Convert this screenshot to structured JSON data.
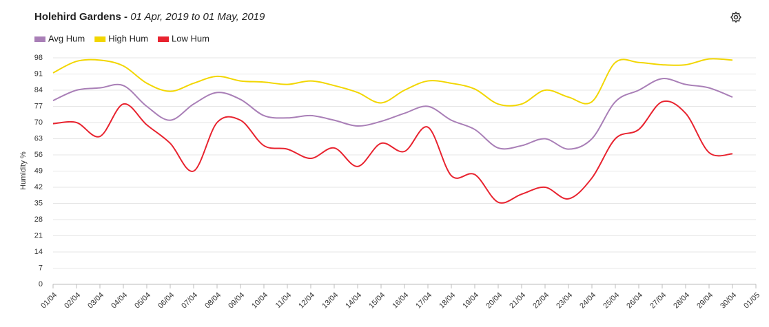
{
  "chart_data": {
    "type": "line",
    "title": "Holehird Gardens -",
    "subtitle": "01 Apr, 2019 to 01 May, 2019",
    "ylabel": "Humidity %",
    "categories": [
      "01/04",
      "02/04",
      "03/04",
      "04/04",
      "05/04",
      "06/04",
      "07/04",
      "08/04",
      "09/04",
      "10/04",
      "11/04",
      "12/04",
      "13/04",
      "14/04",
      "15/04",
      "16/04",
      "17/04",
      "18/04",
      "19/04",
      "20/04",
      "21/04",
      "22/04",
      "23/04",
      "24/04",
      "25/04",
      "26/04",
      "27/04",
      "28/04",
      "29/04",
      "30/04",
      "01/05"
    ],
    "series": [
      {
        "name": "Avg Hum",
        "color": "#a97fb7",
        "values": [
          79.5,
          84,
          85,
          86,
          77,
          71,
          78,
          83,
          80,
          73,
          72,
          73,
          71,
          68.5,
          70.5,
          74,
          77,
          71,
          67,
          59,
          60,
          63,
          58.5,
          63,
          79,
          84,
          89,
          86.5,
          85,
          81,
          null
        ]
      },
      {
        "name": "High Hum",
        "color": "#f2d600",
        "values": [
          91.5,
          96.5,
          97,
          94.5,
          87,
          83.5,
          87,
          90,
          88,
          87.5,
          86.5,
          88,
          86,
          83,
          78.5,
          84,
          88,
          87,
          84.5,
          78,
          78,
          84,
          81,
          79,
          96,
          96,
          95,
          95,
          97.5,
          97,
          null
        ]
      },
      {
        "name": "Low Hum",
        "color": "#e8232f",
        "values": [
          69.5,
          70,
          64,
          78,
          69,
          61,
          49,
          70,
          71,
          60,
          58.5,
          54.5,
          59,
          51,
          61,
          57.5,
          68,
          47,
          47.5,
          35.5,
          39,
          42,
          37,
          46,
          63,
          67,
          79,
          74,
          57,
          56.5,
          null
        ]
      }
    ],
    "ylim": [
      0,
      98
    ],
    "yticks": [
      0,
      7,
      14,
      21,
      28,
      35,
      42,
      49,
      56,
      63,
      70,
      77,
      84,
      91,
      98
    ],
    "grid": true
  }
}
